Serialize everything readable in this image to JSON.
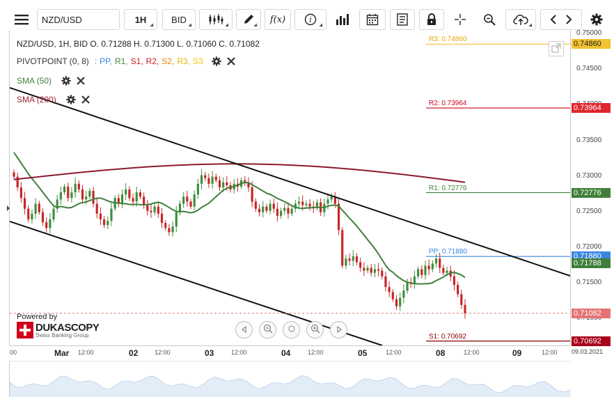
{
  "toolbar": {
    "symbol": "NZD/USD",
    "timeframe": "1H",
    "side": "BID",
    "icons": [
      "menu-icon",
      "candlestick-icon",
      "draw-icon",
      "function-icon",
      "info-icon",
      "volume-icon",
      "calendar-icon",
      "report-icon",
      "lock-icon",
      "crosshair-icon",
      "zoom-icon",
      "upload-icon",
      "prev-icon",
      "next-icon",
      "gear-icon"
    ]
  },
  "info": {
    "header": "NZD/USD, 1H, BID    O. 0.71288 H. 0.71300 L. 0.71060 C. 0.71082",
    "pivot_title": "PIVOTPOINT (0, 8)",
    "pivot_sep": ":",
    "pivot_items": [
      {
        "label": "PP,",
        "color": "#3a86e0"
      },
      {
        "label": "R1,",
        "color": "#3f8a3a"
      },
      {
        "label": "S1,",
        "color": "#cc2020"
      },
      {
        "label": "R2,",
        "color": "#cc2020"
      },
      {
        "label": "S2,",
        "color": "#e08a00"
      },
      {
        "label": "R3,",
        "color": "#e0b800"
      },
      {
        "label": "S3",
        "color": "#f0c800"
      }
    ],
    "sma50": "SMA (50)",
    "sma200": "SMA (200)"
  },
  "levels": [
    {
      "label": "R3: 0.74860",
      "tag": "0.74860",
      "value": 0.7486,
      "color": "#f1c232",
      "text_color": "#e6a800",
      "tag_color": "#f1c232",
      "tag_text": "#222"
    },
    {
      "label": "R2: 0.73964",
      "tag": "0.73964",
      "value": 0.73964,
      "color": "#d0021b",
      "text_color": "#d0021b",
      "tag_color": "#e0252d",
      "tag_text": "#fff"
    },
    {
      "label": "R1: 0.72776",
      "tag": "0.72776",
      "value": 0.72776,
      "color": "#3f7f3a",
      "text_color": "#3f7f3a",
      "tag_color": "#3f7f3a",
      "tag_text": "#fff"
    },
    {
      "label": "PP: 0.71880",
      "tag": "0.71880",
      "value": 0.7188,
      "color": "#3a86e0",
      "text_color": "#3a86e0",
      "tag_color": "#3a86e0",
      "tag_text": "#fff"
    },
    {
      "label": "S1: 0.70692",
      "tag": "0.70692",
      "value": 0.70692,
      "color": "#8b0000",
      "text_color": "#8b0000",
      "tag_color": "#a8001b",
      "tag_text": "#fff"
    }
  ],
  "sma50_tag": {
    "value": "0.71788",
    "color": "#3f7f3a"
  },
  "last_price": {
    "value": "0.71082",
    "color": "#e57373"
  },
  "y_axis": {
    "ticks": [
      "0.75000",
      "0.74500",
      "0.74000",
      "0.73500",
      "0.73000",
      "0.72500",
      "0.72000",
      "0.71500",
      "0.71000"
    ]
  },
  "x_axis": {
    "ticks": [
      {
        "label": "00",
        "day": false
      },
      {
        "label": "Mar",
        "day": true
      },
      {
        "label": "12:00",
        "day": false
      },
      {
        "label": "02",
        "day": true
      },
      {
        "label": "12:00",
        "day": false
      },
      {
        "label": "03",
        "day": true
      },
      {
        "label": "12:00",
        "day": false
      },
      {
        "label": "04",
        "day": true
      },
      {
        "label": "12:00",
        "day": false
      },
      {
        "label": "05",
        "day": true
      },
      {
        "label": "12:00",
        "day": false
      },
      {
        "label": "08",
        "day": true
      },
      {
        "label": "12:00",
        "day": false
      },
      {
        "label": "09",
        "day": true
      },
      {
        "label": "12:00",
        "day": false
      }
    ],
    "date": "09.03.2021"
  },
  "branding": {
    "powered": "Powered by",
    "name": "DUKASCOPY",
    "sub": "Swiss Banking Group"
  },
  "chart_data": {
    "type": "candlestick",
    "symbol": "NZD/USD",
    "timeframe": "1H",
    "ylim": [
      0.7063,
      0.7505
    ],
    "indicators": [
      "SMA (50)",
      "SMA (200)",
      "PIVOTPOINT (0, 8)"
    ],
    "closes": [
      0.73,
      0.7285,
      0.727,
      0.7255,
      0.724,
      0.7248,
      0.7262,
      0.725,
      0.7236,
      0.7228,
      0.724,
      0.7255,
      0.7268,
      0.7278,
      0.7286,
      0.727,
      0.7278,
      0.729,
      0.7282,
      0.7268,
      0.7272,
      0.728,
      0.7262,
      0.7248,
      0.724,
      0.7232,
      0.7238,
      0.7255,
      0.727,
      0.7262,
      0.7275,
      0.7282,
      0.727,
      0.7265,
      0.7278,
      0.7272,
      0.726,
      0.7252,
      0.725,
      0.7258,
      0.7248,
      0.7235,
      0.7228,
      0.7222,
      0.723,
      0.725,
      0.7262,
      0.7272,
      0.7265,
      0.7258,
      0.7275,
      0.729,
      0.7302,
      0.7298,
      0.729,
      0.73,
      0.7295,
      0.7285,
      0.7292,
      0.7288,
      0.7282,
      0.729,
      0.7286,
      0.7295,
      0.7292,
      0.7285,
      0.7265,
      0.7255,
      0.725,
      0.7258,
      0.7252,
      0.7262,
      0.7255,
      0.7245,
      0.7252,
      0.7256,
      0.7248,
      0.7255,
      0.7262,
      0.7265,
      0.726,
      0.7262,
      0.7258,
      0.7256,
      0.7264,
      0.725,
      0.7262,
      0.7268,
      0.7272,
      0.7262,
      0.7225,
      0.7175,
      0.7185,
      0.7182,
      0.7188,
      0.718,
      0.7172,
      0.7168,
      0.7172,
      0.7165,
      0.717,
      0.7168,
      0.716,
      0.7145,
      0.7138,
      0.7128,
      0.7118,
      0.713,
      0.714,
      0.7152,
      0.715,
      0.716,
      0.717,
      0.7162,
      0.7175,
      0.717,
      0.7178,
      0.7185,
      0.7172,
      0.7165,
      0.7168,
      0.716,
      0.7148,
      0.7135,
      0.712,
      0.7108
    ]
  }
}
